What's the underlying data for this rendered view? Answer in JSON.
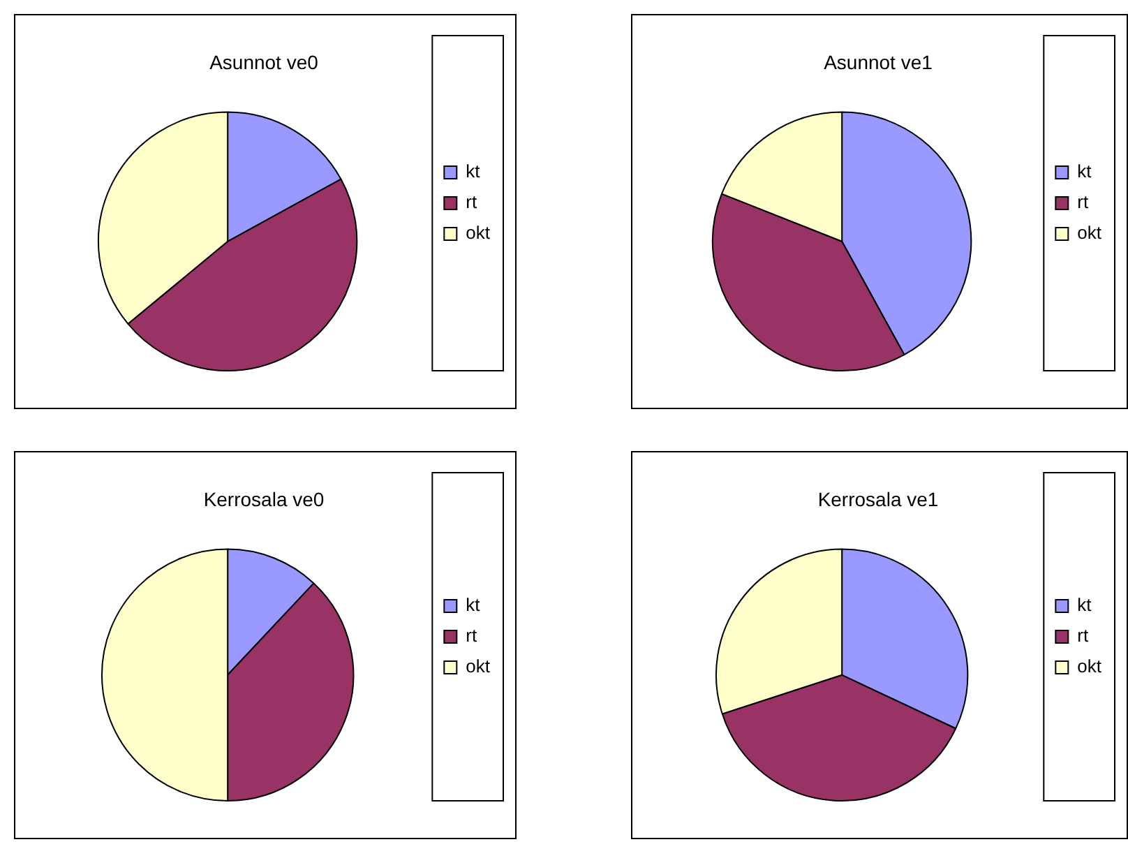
{
  "chart_data": [
    {
      "type": "pie",
      "title": "Asunnot ve0",
      "categories": [
        "kt",
        "rt",
        "okt"
      ],
      "values": [
        17,
        47,
        36
      ],
      "colors": [
        "#9999ff",
        "#993366",
        "#ffffcc"
      ],
      "legend": "right"
    },
    {
      "type": "pie",
      "title": "Asunnot ve1",
      "categories": [
        "kt",
        "rt",
        "okt"
      ],
      "values": [
        42,
        39,
        19
      ],
      "colors": [
        "#9999ff",
        "#993366",
        "#ffffcc"
      ],
      "legend": "right"
    },
    {
      "type": "pie",
      "title": "Kerrosala ve0",
      "categories": [
        "kt",
        "rt",
        "okt"
      ],
      "values": [
        12,
        38,
        50
      ],
      "colors": [
        "#9999ff",
        "#993366",
        "#ffffcc"
      ],
      "legend": "right"
    },
    {
      "type": "pie",
      "title": "Kerrosala ve1",
      "categories": [
        "kt",
        "rt",
        "okt"
      ],
      "values": [
        32,
        38,
        30
      ],
      "colors": [
        "#9999ff",
        "#993366",
        "#ffffcc"
      ],
      "legend": "right"
    }
  ]
}
